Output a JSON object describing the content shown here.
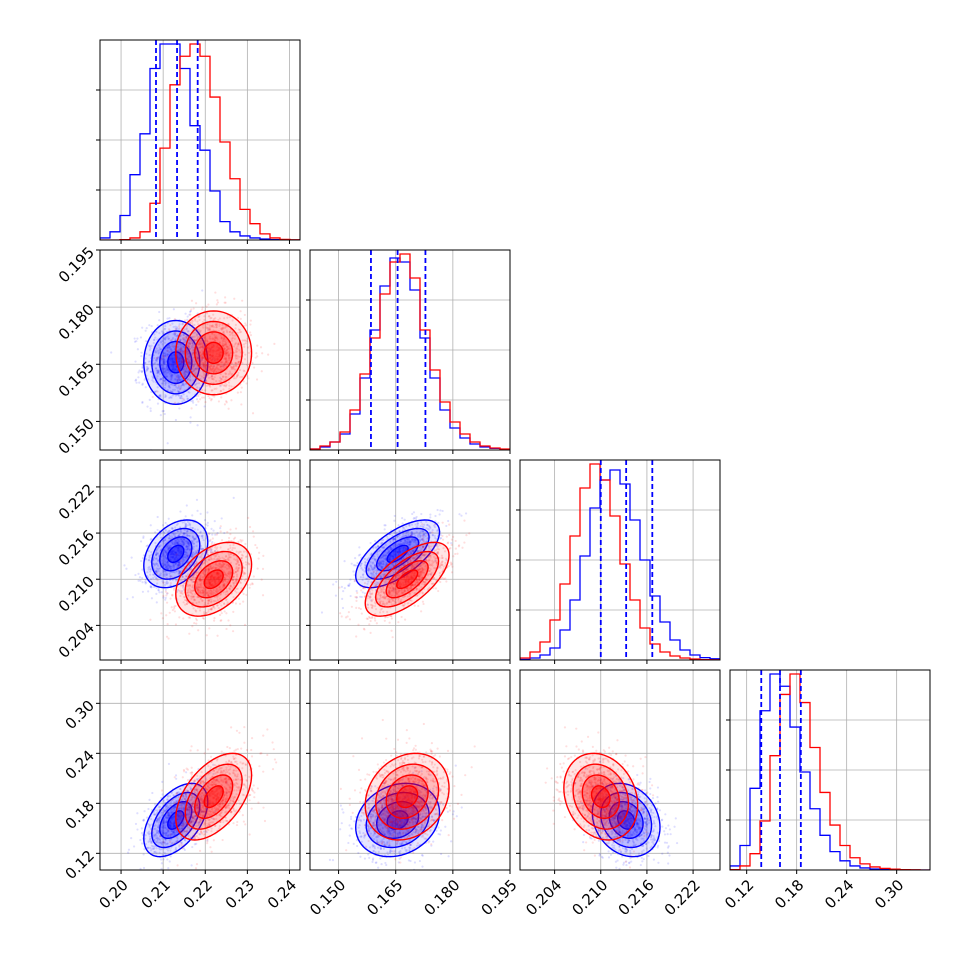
{
  "chart_data": {
    "type": "corner",
    "grid": true,
    "colors": {
      "series_a": "#0000ff",
      "series_b": "#ff0000"
    },
    "params": [
      {
        "range": [
          0.195,
          0.2425
        ],
        "ticks": [
          0.2,
          0.21,
          0.22,
          0.23,
          0.24
        ],
        "tick_labels": [
          "0.20",
          "0.21",
          "0.22",
          "0.23",
          "0.24"
        ]
      },
      {
        "range": [
          0.1425,
          0.195
        ],
        "ticks": [
          0.15,
          0.165,
          0.18,
          0.195
        ],
        "tick_labels": [
          "0.150",
          "0.165",
          "0.180",
          "0.195"
        ]
      },
      {
        "range": [
          0.1995,
          0.2255
        ],
        "ticks": [
          0.204,
          0.21,
          0.216,
          0.222
        ],
        "tick_labels": [
          "0.204",
          "0.210",
          "0.216",
          "0.222"
        ]
      },
      {
        "range": [
          0.1,
          0.34
        ],
        "ticks": [
          0.12,
          0.18,
          0.24,
          0.3
        ],
        "tick_labels": [
          "0.12",
          "0.18",
          "0.24",
          "0.30"
        ]
      }
    ],
    "series": [
      {
        "color": "#0000ff",
        "means": [
          0.213,
          0.1655,
          0.2133,
          0.16
        ],
        "sds": [
          0.0038,
          0.0055,
          0.0022,
          0.022
        ],
        "quantiles": [
          [
            0.2083,
            0.2133,
            0.2182
          ],
          [
            0.1585,
            0.1655,
            0.1728
          ],
          [
            0.21,
            0.2133,
            0.2167
          ],
          [
            0.1375,
            0.16,
            0.185
          ]
        ]
      },
      {
        "color": "#ff0000",
        "means": [
          0.222,
          0.168,
          0.21,
          0.188
        ],
        "sds": [
          0.0045,
          0.0055,
          0.0024,
          0.026
        ],
        "quantiles": []
      }
    ],
    "correlations": [
      {
        "pair": [
          1,
          0
        ],
        "a": 0.0,
        "b": 0.0
      },
      {
        "pair": [
          2,
          0
        ],
        "a": 0.35,
        "b": 0.4
      },
      {
        "pair": [
          2,
          1
        ],
        "a": 0.65,
        "b": 0.65
      },
      {
        "pair": [
          3,
          0
        ],
        "a": 0.5,
        "b": 0.5
      },
      {
        "pair": [
          3,
          1
        ],
        "a": 0.2,
        "b": 0.2
      },
      {
        "pair": [
          3,
          2
        ],
        "a": -0.2,
        "b": -0.2
      }
    ],
    "hist_peak_counts": {
      "series_a": [
        [
          10,
          40,
          120,
          320,
          520,
          840,
          960,
          960,
          840,
          560,
          440,
          240,
          90,
          40,
          20,
          10,
          5,
          2,
          0,
          0
        ],
        [
          5,
          15,
          40,
          80,
          180,
          360,
          600,
          820,
          960,
          940,
          800,
          560,
          360,
          200,
          110,
          60,
          30,
          15,
          8,
          4
        ],
        [
          3,
          10,
          25,
          60,
          150,
          300,
          520,
          760,
          900,
          950,
          880,
          700,
          500,
          320,
          190,
          100,
          50,
          25,
          12,
          6
        ],
        [
          20,
          120,
          400,
          780,
          960,
          900,
          700,
          480,
          300,
          170,
          90,
          45,
          20,
          10,
          5,
          2,
          1,
          0,
          0,
          0
        ]
      ],
      "series_b": [
        [
          0,
          0,
          2,
          10,
          40,
          180,
          450,
          760,
          900,
          960,
          900,
          700,
          480,
          300,
          150,
          80,
          30,
          10,
          3,
          1
        ],
        [
          5,
          20,
          40,
          90,
          200,
          380,
          560,
          780,
          940,
          980,
          860,
          600,
          400,
          240,
          140,
          80,
          40,
          20,
          10,
          5
        ],
        [
          10,
          40,
          90,
          200,
          380,
          620,
          860,
          980,
          900,
          720,
          480,
          300,
          160,
          80,
          40,
          20,
          10,
          5,
          2,
          1
        ],
        [
          2,
          20,
          80,
          240,
          560,
          860,
          960,
          820,
          600,
          380,
          220,
          120,
          60,
          30,
          15,
          8,
          4,
          2,
          1,
          0
        ]
      ]
    }
  }
}
